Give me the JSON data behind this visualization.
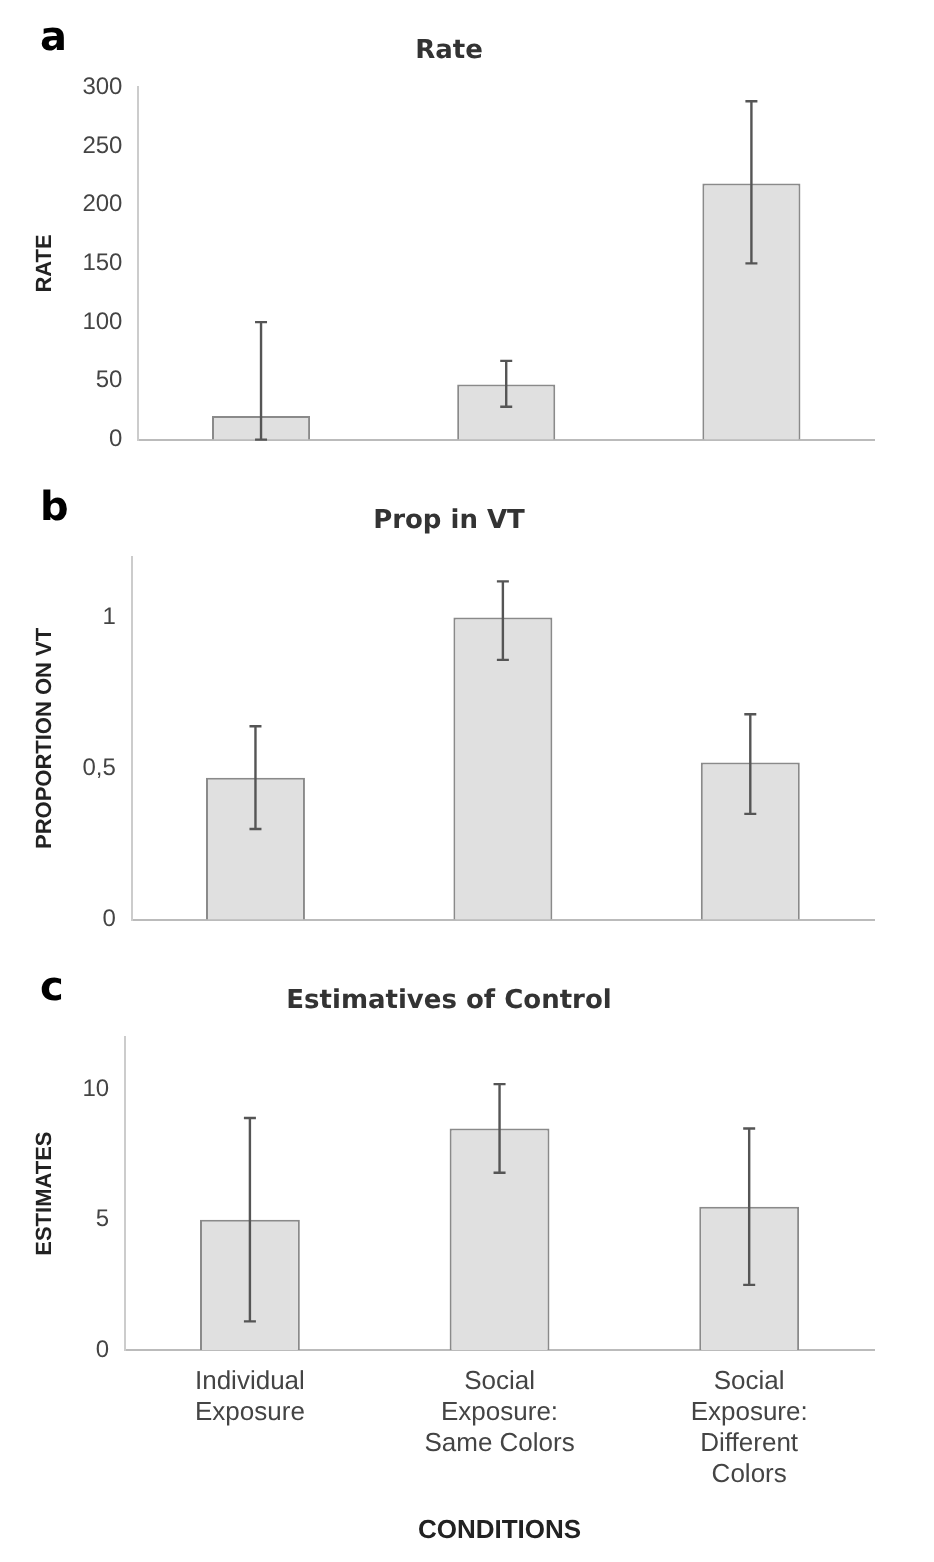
{
  "chart_data": [
    {
      "type": "bar",
      "title": "Rate",
      "ylabel": "RATE",
      "annotations": [
        "a"
      ],
      "categories": [
        null,
        null,
        null
      ],
      "tick_labels": "y",
      "values": [
        20,
        47,
        218
      ],
      "errors": [
        [
          0,
          100
        ],
        [
          28,
          67
        ],
        [
          150,
          288
        ]
      ],
      "color": "#e0e0e0",
      "ylim": [
        0,
        300
      ],
      "yticks": [
        0,
        50,
        100,
        150,
        200,
        250,
        300
      ],
      "grid": false
    },
    {
      "type": "bar",
      "title": "Prop in VT",
      "ylabel": "PROPORTION ON VT",
      "annotations": [
        "b"
      ],
      "categories": [
        null,
        null,
        null
      ],
      "tick_labels": "y",
      "values": [
        0.47,
        1.0,
        0.52
      ],
      "errors": [
        [
          0.3,
          0.64
        ],
        [
          0.86,
          1.12
        ],
        [
          0.35,
          0.68
        ]
      ],
      "color": "#e0e0e0",
      "ylim": [
        0,
        1.2
      ],
      "yticks": [
        0,
        {
          "value": 0.5,
          "label": "0,5"
        },
        1
      ],
      "grid": false
    },
    {
      "type": "bar",
      "title": "Estimatives of Control",
      "ylabel": "ESTIMATES",
      "xlabel": "CONDITIONS",
      "annotations": [
        "c"
      ],
      "categories": [
        "Individual Exposure",
        "Social Exposure: Same Colors",
        "Social Exposure: Different Colors"
      ],
      "values": [
        5.0,
        8.5,
        5.5
      ],
      "errors": [
        [
          1.1,
          8.9
        ],
        [
          6.8,
          10.2
        ],
        [
          2.5,
          8.5
        ]
      ],
      "color": "#e0e0e0",
      "ylim": [
        0,
        12
      ],
      "yticks": [
        0,
        5,
        10
      ],
      "grid": false
    }
  ]
}
